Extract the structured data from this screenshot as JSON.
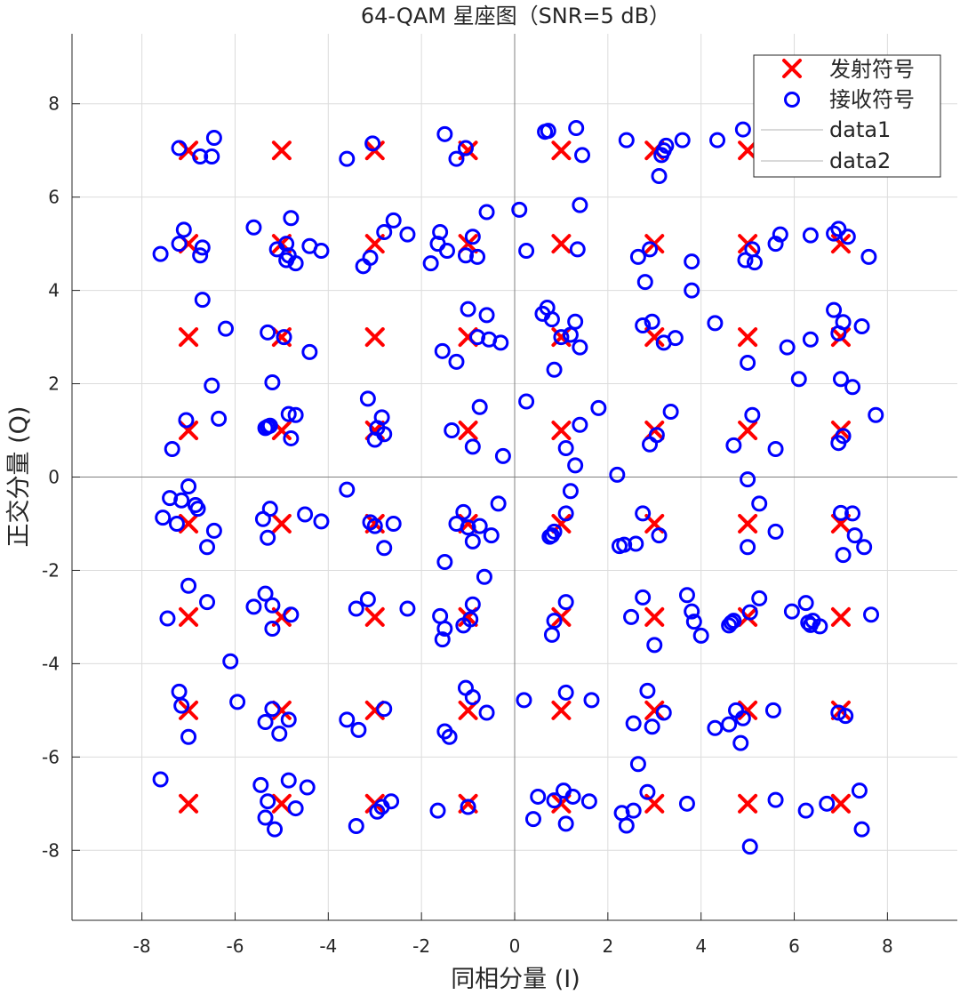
{
  "chart_data": {
    "type": "scatter",
    "title": "64-QAM 星座图（SNR=5 dB）",
    "xlabel": "同相分量 (I)",
    "ylabel": "正交分量 (Q)",
    "xlim": [
      -9.5,
      9.5
    ],
    "ylim": [
      -9.5,
      9.5
    ],
    "xticks": [
      -8,
      -6,
      -4,
      -2,
      0,
      2,
      4,
      6,
      8
    ],
    "yticks": [
      -8,
      -6,
      -4,
      -2,
      0,
      2,
      4,
      6,
      8
    ],
    "grid": true,
    "legend_position": "top-right",
    "colors": {
      "transmitted": "#ff0000",
      "received": "#0000ff",
      "reference_lines": "#b3b3b3",
      "grid": "#dcdcdc",
      "axes": "#262626"
    },
    "legend": [
      {
        "label": "发射符号",
        "marker": "x",
        "color": "#ff0000"
      },
      {
        "label": "接收符号",
        "marker": "o",
        "color": "#0000ff"
      },
      {
        "label": "data1",
        "marker": "line",
        "color": "#b3b3b3"
      },
      {
        "label": "data2",
        "marker": "line",
        "color": "#b3b3b3"
      }
    ],
    "series": [
      {
        "name": "发射符号",
        "marker": "x",
        "levels": [
          -7,
          -5,
          -3,
          -1,
          1,
          3,
          5,
          7
        ]
      },
      {
        "name": "接收符号",
        "marker": "o",
        "points": [
          [
            -7.2,
            7.05
          ],
          [
            -6.75,
            6.87
          ],
          [
            -6.5,
            6.87
          ],
          [
            -6.45,
            7.27
          ],
          [
            -3.05,
            7.15
          ],
          [
            -1.5,
            7.35
          ],
          [
            -1.25,
            6.82
          ],
          [
            -1.05,
            7.05
          ],
          [
            0.65,
            7.4
          ],
          [
            0.72,
            7.42
          ],
          [
            1.32,
            7.48
          ],
          [
            1.45,
            6.9
          ],
          [
            2.4,
            7.22
          ],
          [
            3.1,
            6.45
          ],
          [
            3.15,
            6.9
          ],
          [
            3.2,
            7.0
          ],
          [
            3.25,
            7.1
          ],
          [
            3.6,
            7.22
          ],
          [
            4.35,
            7.22
          ],
          [
            4.9,
            7.45
          ],
          [
            -3.6,
            6.82
          ],
          [
            -7.6,
            4.78
          ],
          [
            -7.2,
            5.0
          ],
          [
            -7.1,
            5.3
          ],
          [
            -6.75,
            4.75
          ],
          [
            -6.7,
            4.92
          ],
          [
            -5.6,
            5.35
          ],
          [
            -5.1,
            4.88
          ],
          [
            -4.9,
            5.0
          ],
          [
            -4.9,
            4.65
          ],
          [
            -4.85,
            4.75
          ],
          [
            -4.8,
            5.55
          ],
          [
            -4.7,
            4.58
          ],
          [
            -4.4,
            4.95
          ],
          [
            -4.15,
            4.85
          ],
          [
            -3.25,
            4.52
          ],
          [
            -3.1,
            4.7
          ],
          [
            -2.8,
            5.25
          ],
          [
            -2.6,
            5.5
          ],
          [
            -2.3,
            5.2
          ],
          [
            -1.8,
            4.58
          ],
          [
            -1.65,
            5.0
          ],
          [
            -1.6,
            5.25
          ],
          [
            -1.45,
            4.85
          ],
          [
            -1.05,
            4.75
          ],
          [
            -0.9,
            5.15
          ],
          [
            -0.8,
            4.72
          ],
          [
            -0.6,
            5.68
          ],
          [
            0.1,
            5.73
          ],
          [
            0.25,
            4.85
          ],
          [
            1.35,
            4.88
          ],
          [
            1.4,
            5.83
          ],
          [
            2.65,
            4.72
          ],
          [
            2.8,
            4.18
          ],
          [
            2.9,
            4.88
          ],
          [
            3.8,
            4.62
          ],
          [
            3.8,
            4.0
          ],
          [
            4.95,
            4.65
          ],
          [
            5.1,
            4.88
          ],
          [
            5.15,
            4.6
          ],
          [
            5.6,
            5.0
          ],
          [
            5.7,
            5.2
          ],
          [
            6.35,
            5.18
          ],
          [
            6.85,
            5.22
          ],
          [
            6.95,
            5.32
          ],
          [
            7.15,
            5.15
          ],
          [
            7.6,
            4.72
          ],
          [
            -6.7,
            3.8
          ],
          [
            -6.2,
            3.18
          ],
          [
            -5.3,
            3.1
          ],
          [
            -4.95,
            3.0
          ],
          [
            -4.4,
            2.68
          ],
          [
            -1.55,
            2.7
          ],
          [
            -1.25,
            2.47
          ],
          [
            -1.0,
            3.6
          ],
          [
            -0.8,
            3.0
          ],
          [
            -0.6,
            3.47
          ],
          [
            -0.55,
            2.95
          ],
          [
            -0.3,
            2.88
          ],
          [
            0.6,
            3.5
          ],
          [
            0.7,
            3.63
          ],
          [
            0.8,
            3.38
          ],
          [
            0.85,
            2.3
          ],
          [
            1.0,
            3.0
          ],
          [
            1.2,
            3.05
          ],
          [
            1.3,
            3.33
          ],
          [
            1.4,
            2.78
          ],
          [
            2.75,
            3.25
          ],
          [
            2.95,
            3.33
          ],
          [
            3.2,
            2.88
          ],
          [
            3.45,
            2.98
          ],
          [
            4.3,
            3.3
          ],
          [
            5.0,
            2.45
          ],
          [
            5.85,
            2.78
          ],
          [
            6.35,
            2.95
          ],
          [
            6.85,
            3.58
          ],
          [
            6.95,
            3.08
          ],
          [
            7.05,
            3.32
          ],
          [
            7.45,
            3.23
          ],
          [
            -6.5,
            1.96
          ],
          [
            -5.2,
            2.03
          ],
          [
            -3.15,
            1.68
          ],
          [
            0.25,
            1.62
          ],
          [
            1.8,
            1.48
          ],
          [
            6.1,
            2.1
          ],
          [
            7.0,
            2.1
          ],
          [
            7.25,
            1.93
          ],
          [
            -7.35,
            0.6
          ],
          [
            -7.05,
            1.22
          ],
          [
            -6.35,
            1.25
          ],
          [
            -5.35,
            1.05
          ],
          [
            -5.3,
            1.08
          ],
          [
            -5.25,
            1.1
          ],
          [
            -4.85,
            1.35
          ],
          [
            -4.8,
            0.83
          ],
          [
            -4.7,
            1.33
          ],
          [
            -3.0,
            0.8
          ],
          [
            -2.95,
            1.05
          ],
          [
            -2.85,
            1.28
          ],
          [
            -2.8,
            0.92
          ],
          [
            -1.35,
            1.0
          ],
          [
            -0.9,
            0.65
          ],
          [
            -0.75,
            1.5
          ],
          [
            -0.25,
            0.45
          ],
          [
            1.1,
            0.62
          ],
          [
            1.3,
            0.25
          ],
          [
            1.4,
            1.12
          ],
          [
            2.9,
            0.7
          ],
          [
            3.05,
            0.9
          ],
          [
            3.35,
            1.4
          ],
          [
            4.7,
            0.68
          ],
          [
            5.1,
            1.33
          ],
          [
            5.6,
            0.6
          ],
          [
            6.95,
            0.73
          ],
          [
            7.05,
            0.88
          ],
          [
            7.75,
            1.33
          ],
          [
            -7.55,
            -0.87
          ],
          [
            -7.4,
            -0.45
          ],
          [
            -7.25,
            -1.0
          ],
          [
            -7.15,
            -0.5
          ],
          [
            -7.0,
            -0.2
          ],
          [
            -6.85,
            -0.6
          ],
          [
            -6.8,
            -0.68
          ],
          [
            -6.6,
            -1.5
          ],
          [
            -6.45,
            -1.15
          ],
          [
            -5.4,
            -0.9
          ],
          [
            -5.3,
            -1.3
          ],
          [
            -5.25,
            -0.68
          ],
          [
            -4.5,
            -0.8
          ],
          [
            -4.15,
            -0.95
          ],
          [
            -3.6,
            -0.27
          ],
          [
            -3.1,
            -0.97
          ],
          [
            -3.0,
            -1.05
          ],
          [
            -2.8,
            -1.52
          ],
          [
            -2.6,
            -1.0
          ],
          [
            -1.5,
            -1.82
          ],
          [
            -1.25,
            -1.0
          ],
          [
            -1.1,
            -0.75
          ],
          [
            -1.0,
            -1.08
          ],
          [
            -0.9,
            -1.38
          ],
          [
            -0.75,
            -1.05
          ],
          [
            -0.65,
            -2.14
          ],
          [
            -0.5,
            -1.25
          ],
          [
            -0.35,
            -0.57
          ],
          [
            0.75,
            -1.28
          ],
          [
            0.8,
            -1.25
          ],
          [
            0.85,
            -1.17
          ],
          [
            1.1,
            -0.78
          ],
          [
            1.2,
            -0.3
          ],
          [
            2.2,
            0.05
          ],
          [
            2.25,
            -1.48
          ],
          [
            2.35,
            -1.45
          ],
          [
            2.6,
            -1.43
          ],
          [
            2.75,
            -0.78
          ],
          [
            3.1,
            -1.25
          ],
          [
            5.0,
            -0.05
          ],
          [
            5.0,
            -1.5
          ],
          [
            5.25,
            -0.57
          ],
          [
            5.6,
            -1.17
          ],
          [
            7.0,
            -0.77
          ],
          [
            7.05,
            -1.67
          ],
          [
            7.25,
            -0.78
          ],
          [
            7.3,
            -1.25
          ],
          [
            7.5,
            -1.5
          ],
          [
            -7.45,
            -3.03
          ],
          [
            -7.0,
            -2.33
          ],
          [
            -6.6,
            -2.68
          ],
          [
            -6.1,
            -3.95
          ],
          [
            -5.95,
            -4.82
          ],
          [
            -5.6,
            -2.78
          ],
          [
            -5.35,
            -2.5
          ],
          [
            -5.2,
            -3.25
          ],
          [
            -5.2,
            -2.75
          ],
          [
            -4.8,
            -2.95
          ],
          [
            -3.4,
            -2.82
          ],
          [
            -3.15,
            -2.62
          ],
          [
            -2.3,
            -2.82
          ],
          [
            -1.6,
            -2.98
          ],
          [
            -1.55,
            -3.48
          ],
          [
            -1.5,
            -3.25
          ],
          [
            -1.1,
            -3.18
          ],
          [
            -0.95,
            -3.05
          ],
          [
            -0.9,
            -2.73
          ],
          [
            0.8,
            -3.38
          ],
          [
            0.85,
            -3.08
          ],
          [
            1.1,
            -2.68
          ],
          [
            2.5,
            -3.0
          ],
          [
            2.75,
            -2.58
          ],
          [
            3.0,
            -3.6
          ],
          [
            3.7,
            -2.53
          ],
          [
            3.8,
            -2.88
          ],
          [
            3.85,
            -3.1
          ],
          [
            4.0,
            -3.4
          ],
          [
            4.6,
            -3.18
          ],
          [
            4.65,
            -3.12
          ],
          [
            4.7,
            -3.08
          ],
          [
            5.05,
            -2.9
          ],
          [
            5.25,
            -2.6
          ],
          [
            5.95,
            -2.88
          ],
          [
            6.25,
            -2.7
          ],
          [
            6.3,
            -3.12
          ],
          [
            6.35,
            -3.17
          ],
          [
            6.4,
            -3.08
          ],
          [
            6.55,
            -3.2
          ],
          [
            7.65,
            -2.95
          ],
          [
            -7.2,
            -4.6
          ],
          [
            -7.15,
            -4.9
          ],
          [
            -7.0,
            -5.57
          ],
          [
            -5.35,
            -5.25
          ],
          [
            -5.2,
            -4.97
          ],
          [
            -5.05,
            -5.5
          ],
          [
            -4.85,
            -5.2
          ],
          [
            -3.6,
            -5.2
          ],
          [
            -3.35,
            -5.42
          ],
          [
            -2.8,
            -4.97
          ],
          [
            -1.05,
            -4.52
          ],
          [
            -0.9,
            -4.72
          ],
          [
            -0.6,
            -5.05
          ],
          [
            -1.5,
            -5.45
          ],
          [
            -1.4,
            -5.57
          ],
          [
            0.2,
            -4.78
          ],
          [
            1.1,
            -4.62
          ],
          [
            1.65,
            -4.78
          ],
          [
            2.55,
            -5.28
          ],
          [
            2.85,
            -4.58
          ],
          [
            2.95,
            -5.35
          ],
          [
            3.2,
            -5.05
          ],
          [
            4.3,
            -5.38
          ],
          [
            4.6,
            -5.3
          ],
          [
            4.75,
            -5.0
          ],
          [
            4.85,
            -5.7
          ],
          [
            4.9,
            -5.17
          ],
          [
            5.55,
            -5.0
          ],
          [
            6.95,
            -5.05
          ],
          [
            7.1,
            -5.12
          ],
          [
            2.65,
            -6.15
          ],
          [
            -7.6,
            -6.48
          ],
          [
            -5.45,
            -6.6
          ],
          [
            -5.35,
            -7.3
          ],
          [
            -5.3,
            -6.95
          ],
          [
            -5.15,
            -7.55
          ],
          [
            -4.85,
            -6.5
          ],
          [
            -4.7,
            -7.1
          ],
          [
            -4.45,
            -6.65
          ],
          [
            -3.4,
            -7.48
          ],
          [
            -2.95,
            -7.17
          ],
          [
            -2.85,
            -7.07
          ],
          [
            -2.65,
            -6.95
          ],
          [
            -1.65,
            -7.15
          ],
          [
            -1.0,
            -7.07
          ],
          [
            0.4,
            -7.33
          ],
          [
            0.5,
            -6.85
          ],
          [
            0.85,
            -6.93
          ],
          [
            1.05,
            -6.72
          ],
          [
            1.1,
            -7.43
          ],
          [
            1.25,
            -6.85
          ],
          [
            1.6,
            -6.95
          ],
          [
            2.3,
            -7.2
          ],
          [
            2.4,
            -7.47
          ],
          [
            2.55,
            -7.15
          ],
          [
            2.85,
            -6.75
          ],
          [
            3.7,
            -7.0
          ],
          [
            5.05,
            -7.92
          ],
          [
            5.6,
            -6.92
          ],
          [
            6.25,
            -7.15
          ],
          [
            6.7,
            -7.0
          ],
          [
            7.4,
            -6.72
          ],
          [
            7.45,
            -7.55
          ]
        ]
      }
    ]
  }
}
